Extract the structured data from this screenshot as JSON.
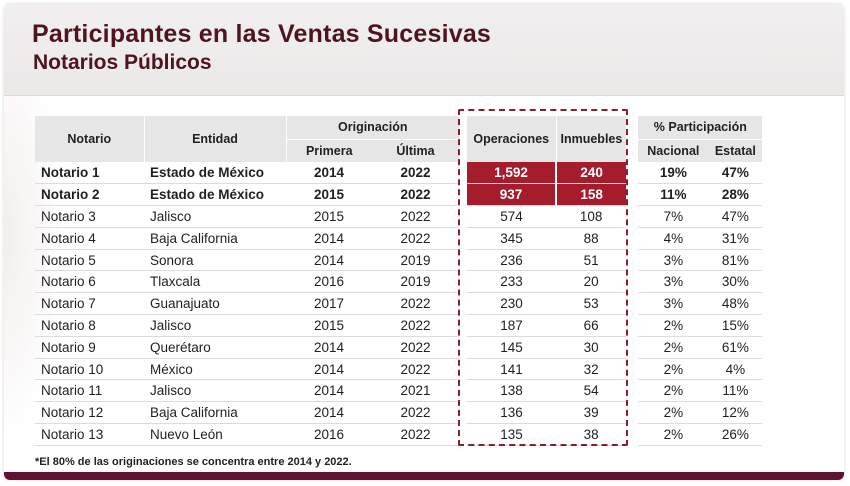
{
  "title": "Participantes en las Ventas Sucesivas",
  "subtitle": "Notarios Públicos",
  "colors": {
    "title": "#4e1420",
    "highlight": "#a51d2d",
    "dashed_box": "#8c1d2e",
    "bottom_bar": "#611232"
  },
  "table": {
    "headers": {
      "notario": "Notario",
      "entidad": "Entidad",
      "originacion": "Originación",
      "primera": "Primera",
      "ultima": "Última",
      "operaciones": "Operaciones",
      "inmuebles": "Inmuebles",
      "participacion": "% Participación",
      "nacional": "Nacional",
      "estatal": "Estatal"
    },
    "rows": [
      {
        "notario": "Notario 1",
        "entidad": "Estado de México",
        "primera": "2014",
        "ultima": "2022",
        "operaciones": "1,592",
        "inmuebles": "240",
        "nacional": "19%",
        "estatal": "47%"
      },
      {
        "notario": "Notario 2",
        "entidad": "Estado de México",
        "primera": "2015",
        "ultima": "2022",
        "operaciones": "937",
        "inmuebles": "158",
        "nacional": "11%",
        "estatal": "28%"
      },
      {
        "notario": "Notario 3",
        "entidad": "Jalisco",
        "primera": "2015",
        "ultima": "2022",
        "operaciones": "574",
        "inmuebles": "108",
        "nacional": "7%",
        "estatal": "47%"
      },
      {
        "notario": "Notario 4",
        "entidad": "Baja California",
        "primera": "2014",
        "ultima": "2022",
        "operaciones": "345",
        "inmuebles": "88",
        "nacional": "4%",
        "estatal": "31%"
      },
      {
        "notario": "Notario 5",
        "entidad": "Sonora",
        "primera": "2014",
        "ultima": "2019",
        "operaciones": "236",
        "inmuebles": "51",
        "nacional": "3%",
        "estatal": "81%"
      },
      {
        "notario": "Notario 6",
        "entidad": "Tlaxcala",
        "primera": "2016",
        "ultima": "2019",
        "operaciones": "233",
        "inmuebles": "20",
        "nacional": "3%",
        "estatal": "30%"
      },
      {
        "notario": "Notario 7",
        "entidad": "Guanajuato",
        "primera": "2017",
        "ultima": "2022",
        "operaciones": "230",
        "inmuebles": "53",
        "nacional": "3%",
        "estatal": "48%"
      },
      {
        "notario": "Notario 8",
        "entidad": "Jalisco",
        "primera": "2015",
        "ultima": "2022",
        "operaciones": "187",
        "inmuebles": "66",
        "nacional": "2%",
        "estatal": "15%"
      },
      {
        "notario": "Notario 9",
        "entidad": "Querétaro",
        "primera": "2014",
        "ultima": "2022",
        "operaciones": "145",
        "inmuebles": "30",
        "nacional": "2%",
        "estatal": "61%"
      },
      {
        "notario": "Notario 10",
        "entidad": "México",
        "primera": "2014",
        "ultima": "2022",
        "operaciones": "141",
        "inmuebles": "32",
        "nacional": "2%",
        "estatal": "4%"
      },
      {
        "notario": "Notario 11",
        "entidad": "Jalisco",
        "primera": "2014",
        "ultima": "2021",
        "operaciones": "138",
        "inmuebles": "54",
        "nacional": "2%",
        "estatal": "11%"
      },
      {
        "notario": "Notario 12",
        "entidad": "Baja California",
        "primera": "2014",
        "ultima": "2022",
        "operaciones": "136",
        "inmuebles": "39",
        "nacional": "2%",
        "estatal": "12%"
      },
      {
        "notario": "Notario 13",
        "entidad": "Nuevo León",
        "primera": "2016",
        "ultima": "2022",
        "operaciones": "135",
        "inmuebles": "38",
        "nacional": "2%",
        "estatal": "26%"
      }
    ]
  },
  "footnote": "*El 80% de las originaciones se concentra entre  2014 y 2022."
}
